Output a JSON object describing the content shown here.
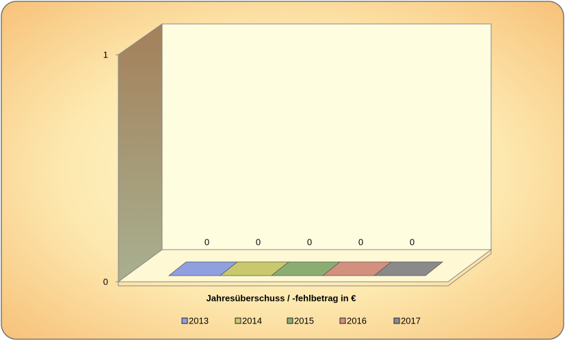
{
  "chart_data": {
    "type": "bar",
    "categories": [
      "Jahresüberschuss / -fehlbetrag in €"
    ],
    "series": [
      {
        "name": "2013",
        "color": "#8f9fe0",
        "values": [
          0
        ]
      },
      {
        "name": "2014",
        "color": "#c9c86c",
        "values": [
          0
        ]
      },
      {
        "name": "2015",
        "color": "#8cad72",
        "values": [
          0
        ]
      },
      {
        "name": "2016",
        "color": "#d3907f",
        "values": [
          0
        ]
      },
      {
        "name": "2017",
        "color": "#8a8a8a",
        "values": [
          0
        ]
      }
    ],
    "ylim": [
      0,
      1
    ],
    "yticks": [
      0,
      1
    ],
    "legend": "bottom"
  }
}
